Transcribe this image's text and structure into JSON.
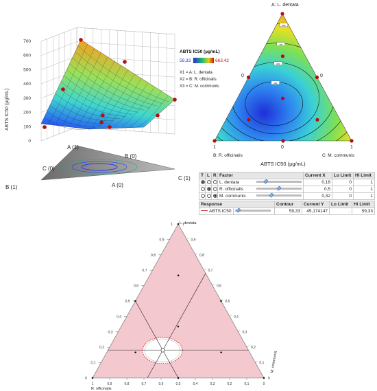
{
  "colors": {
    "surface_low": "#1f3cff",
    "surface_mid": "#3fd6a0",
    "surface_high": "#f2a020",
    "contour_fill": "#f3c8cf",
    "point": "#b01010",
    "legend_min": "#2a2fd0",
    "legend_max": "#cc1010"
  },
  "chart_data": [
    {
      "type": "surface3d",
      "zlabel": "ABTS IC50 (µg/mL)",
      "zticks": [
        "0",
        "100",
        "200",
        "300",
        "400",
        "500",
        "600",
        "700"
      ],
      "axis_labels": {
        "a1": "A (1)",
        "b0": "B (0)",
        "c0": "C (0)",
        "a0": "A (0)",
        "b1": "B (1)",
        "c1": "C (1)"
      },
      "zlim": [
        0,
        700
      ]
    },
    {
      "type": "ternary_contour",
      "title": "A: L. dentata",
      "xlabel": "ABTS IC50 (µg/mL)",
      "vertex_labels": {
        "bottom_left": "B: R. officinalis",
        "bottom_right": "C: M. communis"
      },
      "corner_ticks": {
        "left_1": "1",
        "left_0": "0",
        "right_0": "0",
        "right_1": "1",
        "mid_0": "0"
      },
      "contour_levels": [
        "100",
        "200",
        "300",
        "400",
        "500",
        "600"
      ],
      "legend": {
        "title": "ABTS IC50 (µg/mL)",
        "min": "59,33",
        "max": "663,42",
        "factors": [
          "X1 = A: L. dentata",
          "X2 = B: R. officinalis",
          "X3 = C: M. communis"
        ]
      },
      "design_points": [
        {
          "a": 1,
          "b": 0,
          "c": 0
        },
        {
          "a": 0,
          "b": 1,
          "c": 0
        },
        {
          "a": 0,
          "b": 0,
          "c": 1
        },
        {
          "a": 0.5,
          "b": 0.5,
          "c": 0
        },
        {
          "a": 0.5,
          "b": 0,
          "c": 0.5
        },
        {
          "a": 0,
          "b": 0.5,
          "c": 0.5
        },
        {
          "a": 0.333,
          "b": 0.333,
          "c": 0.333
        },
        {
          "a": 0.667,
          "b": 0.167,
          "c": 0.167
        },
        {
          "a": 0.167,
          "b": 0.667,
          "c": 0.167
        },
        {
          "a": 0.167,
          "b": 0.167,
          "c": 0.667
        }
      ]
    },
    {
      "type": "ternary_profiler",
      "vertex_labels": {
        "top": "L. dentata",
        "left": "R. officinalis",
        "right": "M. communis"
      },
      "ticks": [
        "0",
        "0,1",
        "0,2",
        "0,3",
        "0,4",
        "0,5",
        "0,6",
        "0,7",
        "0,8",
        "0,9",
        "1"
      ],
      "current_point": {
        "a": 0.18,
        "b": 0.5,
        "c": 0.32
      },
      "contour_value": 59.33
    }
  ],
  "profiler": {
    "headers": {
      "t": "T",
      "l": "L",
      "r": "R",
      "factor": "Factor",
      "current_x": "Current X",
      "lo": "Lo Limit",
      "hi": "Hi Limit"
    },
    "rows": [
      {
        "factor": "L. dentata",
        "current_x": "0,18",
        "lo": "0",
        "hi": "1",
        "slider": 0.18,
        "selected": "t"
      },
      {
        "factor": "R. officinalis",
        "current_x": "0,5",
        "lo": "0",
        "hi": "1",
        "slider": 0.5,
        "selected": "l"
      },
      {
        "factor": "M. communis",
        "current_x": "0,32",
        "lo": "0",
        "hi": "1",
        "slider": 0.32,
        "selected": "r"
      }
    ],
    "response_headers": {
      "response": "Response",
      "contour": "Contour",
      "current_y": "Current Y",
      "lo": "Lo Limit",
      "hi": "Hi Limit"
    },
    "response": {
      "name": "ABTS IC50",
      "contour": "59,33",
      "current_y": "45,174147",
      "lo": ".",
      "hi": "59,33",
      "slider": 0.05
    }
  }
}
